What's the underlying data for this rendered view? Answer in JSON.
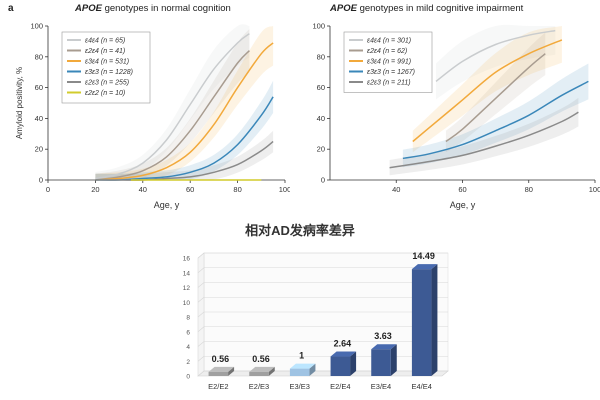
{
  "panel_label": "a",
  "chart_data": [
    {
      "type": "line",
      "title_em": "APOE",
      "title_rest": " genotypes in normal cognition",
      "xlabel": "Age, y",
      "ylabel": "Amyloid positivity, %",
      "xlim": [
        0,
        100
      ],
      "ylim": [
        0,
        100
      ],
      "xticks": [
        0,
        20,
        40,
        60,
        80,
        100
      ],
      "yticks": [
        0,
        20,
        40,
        60,
        80,
        100
      ],
      "grid": false,
      "legend_position": "top-left",
      "series": [
        {
          "name": "ε4ε4 (n = 65)",
          "color": "#c9ccce",
          "x": [
            20,
            30,
            40,
            50,
            60,
            70,
            80,
            85
          ],
          "y": [
            1,
            4,
            11,
            26,
            49,
            72,
            89,
            95
          ]
        },
        {
          "name": "ε2ε4 (n = 41)",
          "color": "#a89c90",
          "x": [
            20,
            30,
            40,
            50,
            60,
            70,
            80,
            85
          ],
          "y": [
            0,
            2,
            6,
            15,
            32,
            54,
            76,
            84
          ]
        },
        {
          "name": "ε3ε4 (n = 531)",
          "color": "#f2a93b",
          "x": [
            20,
            30,
            40,
            50,
            60,
            70,
            80,
            90,
            95
          ],
          "y": [
            0,
            1,
            3,
            8,
            18,
            36,
            60,
            82,
            89
          ]
        },
        {
          "name": "ε3ε3 (n = 1228)",
          "color": "#3a87b9",
          "x": [
            20,
            30,
            40,
            50,
            60,
            70,
            80,
            90,
            95
          ],
          "y": [
            0,
            0,
            1,
            2,
            5,
            11,
            23,
            42,
            54
          ]
        },
        {
          "name": "ε2ε3 (n = 255)",
          "color": "#8a8a8a",
          "x": [
            20,
            30,
            40,
            50,
            60,
            70,
            80,
            90,
            95
          ],
          "y": [
            0,
            0,
            0,
            1,
            2,
            5,
            10,
            19,
            25
          ]
        },
        {
          "name": "ε2ε2 (n = 10)",
          "color": "#d2cc2c",
          "x": [
            35,
            50,
            60,
            70,
            80,
            90
          ],
          "y": [
            0,
            0,
            0,
            0,
            0,
            0
          ]
        }
      ]
    },
    {
      "type": "line",
      "title_em": "APOE",
      "title_rest": " genotypes in mild cognitive impairment",
      "xlabel": "Age, y",
      "ylabel": "",
      "xlim": [
        20,
        100
      ],
      "ylim": [
        0,
        100
      ],
      "xticks": [
        40,
        60,
        80,
        100
      ],
      "yticks": [
        0,
        20,
        40,
        60,
        80,
        100
      ],
      "grid": false,
      "legend_position": "top-left",
      "series": [
        {
          "name": "ε4ε4 (n = 301)",
          "color": "#c9ccce",
          "x": [
            52,
            60,
            70,
            80,
            88
          ],
          "y": [
            64,
            77,
            88,
            94,
            97
          ]
        },
        {
          "name": "ε2ε4 (n = 62)",
          "color": "#a89c90",
          "x": [
            55,
            60,
            70,
            80,
            85
          ],
          "y": [
            25,
            33,
            53,
            73,
            82
          ]
        },
        {
          "name": "ε3ε4 (n = 991)",
          "color": "#f2a93b",
          "x": [
            45,
            50,
            60,
            70,
            80,
            90
          ],
          "y": [
            25,
            34,
            52,
            70,
            82,
            91
          ]
        },
        {
          "name": "ε3ε3 (n = 1267)",
          "color": "#3a87b9",
          "x": [
            42,
            50,
            60,
            70,
            80,
            90,
            98
          ],
          "y": [
            14,
            17,
            23,
            32,
            42,
            55,
            64
          ]
        },
        {
          "name": "ε2ε3 (n = 211)",
          "color": "#8a8a8a",
          "x": [
            38,
            50,
            60,
            70,
            80,
            90,
            95
          ],
          "y": [
            8,
            12,
            16,
            22,
            29,
            38,
            44
          ]
        }
      ]
    },
    {
      "type": "bar",
      "title": "相对AD发病率差异",
      "categories": [
        "E2/E2",
        "E2/E3",
        "E3/E3",
        "E2/E4",
        "E3/E4",
        "E4/E4"
      ],
      "values": [
        0.56,
        0.56,
        1,
        2.64,
        3.63,
        14.49
      ],
      "value_labels": [
        "0.56",
        "0.56",
        "1",
        "2.64",
        "3.63",
        "14.49"
      ],
      "bar_colors": [
        "#a0a0a0",
        "#a0a0a0",
        "#9fc3e3",
        "#3d5a94",
        "#3d5a94",
        "#3d5a94"
      ],
      "ylim": [
        0,
        16
      ],
      "yticks": [
        0,
        2,
        4,
        6,
        8,
        10,
        12,
        14,
        16
      ],
      "grid": true,
      "legend_position": "none"
    }
  ]
}
